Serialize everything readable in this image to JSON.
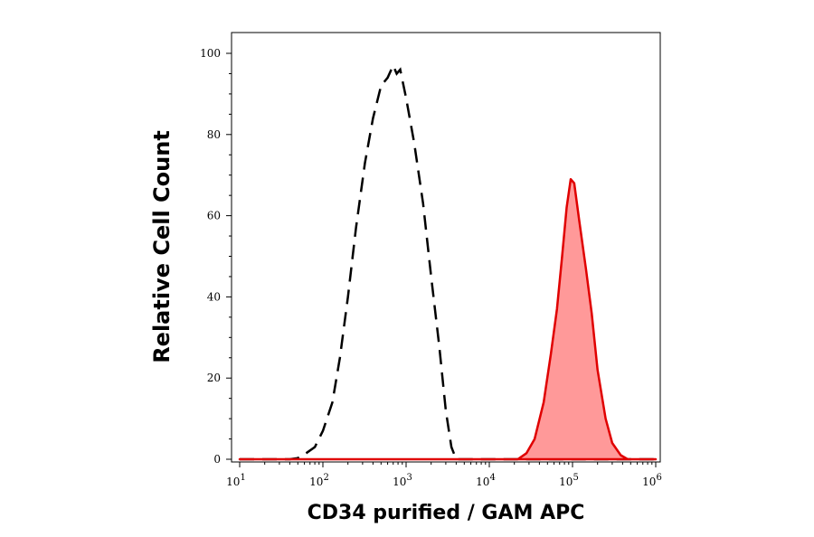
{
  "chart_data": {
    "type": "area",
    "title": "",
    "xlabel": "CD34 purified / GAM APC",
    "ylabel": "Relative Cell Count",
    "xscale": "log",
    "xlim": [
      10,
      1000000
    ],
    "ylim": [
      0,
      100
    ],
    "grid": false,
    "legend": "none",
    "x_ticks": [
      {
        "base": "10",
        "exp": "1",
        "value": 10
      },
      {
        "base": "10",
        "exp": "2",
        "value": 100
      },
      {
        "base": "10",
        "exp": "3",
        "value": 1000
      },
      {
        "base": "10",
        "exp": "4",
        "value": 10000
      },
      {
        "base": "10",
        "exp": "5",
        "value": 100000
      },
      {
        "base": "10",
        "exp": "6",
        "value": 1000000
      }
    ],
    "y_ticks": [
      {
        "label": "0",
        "value": 0
      },
      {
        "label": "20",
        "value": 20
      },
      {
        "label": "40",
        "value": 40
      },
      {
        "label": "60",
        "value": 60
      },
      {
        "label": "80",
        "value": 80
      },
      {
        "label": "100",
        "value": 100
      }
    ],
    "series": [
      {
        "style": "dashed-outline",
        "color": "#000000",
        "points": [
          [
            10,
            0
          ],
          [
            40,
            0
          ],
          [
            50,
            0.3
          ],
          [
            63,
            1.5
          ],
          [
            80,
            3
          ],
          [
            100,
            7
          ],
          [
            130,
            14
          ],
          [
            160,
            25
          ],
          [
            200,
            40
          ],
          [
            250,
            57
          ],
          [
            320,
            73
          ],
          [
            400,
            84
          ],
          [
            500,
            92
          ],
          [
            600,
            94
          ],
          [
            700,
            97
          ],
          [
            770,
            95
          ],
          [
            850,
            96
          ],
          [
            1000,
            89
          ],
          [
            1250,
            78
          ],
          [
            1600,
            63
          ],
          [
            2000,
            45
          ],
          [
            2500,
            28
          ],
          [
            3000,
            12
          ],
          [
            3500,
            3
          ],
          [
            4000,
            0
          ],
          [
            1000000,
            0
          ]
        ]
      },
      {
        "style": "filled",
        "color": "#e00000",
        "fill": "#ff9999",
        "points": [
          [
            10,
            0
          ],
          [
            22000,
            0
          ],
          [
            28000,
            1.5
          ],
          [
            35000,
            5
          ],
          [
            45000,
            14
          ],
          [
            55000,
            26
          ],
          [
            65000,
            37
          ],
          [
            75000,
            50
          ],
          [
            85000,
            62
          ],
          [
            95000,
            69
          ],
          [
            105000,
            68
          ],
          [
            120000,
            59
          ],
          [
            145000,
            47
          ],
          [
            170000,
            36
          ],
          [
            200000,
            22
          ],
          [
            250000,
            10
          ],
          [
            300000,
            4
          ],
          [
            380000,
            1
          ],
          [
            460000,
            0
          ],
          [
            1000000,
            0
          ]
        ]
      }
    ]
  }
}
